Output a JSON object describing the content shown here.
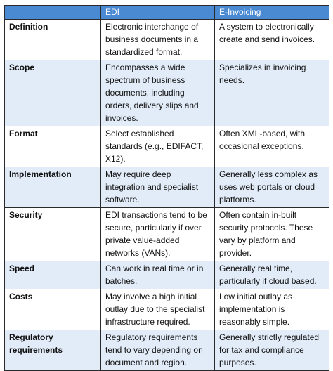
{
  "columns": [
    "",
    "EDI",
    "E-Invoicing"
  ],
  "rows": [
    {
      "label": "Definition",
      "edi": "Electronic interchange of business documents in a standardized format.",
      "einv": "A system to electronically create and send invoices."
    },
    {
      "label": "Scope",
      "edi": "Encompasses a wide spectrum of business documents, including orders, delivery slips and invoices.",
      "einv": "Specializes in invoicing needs."
    },
    {
      "label": "Format",
      "edi": "Select established standards (e.g., EDIFACT, X12).",
      "einv": "Often XML-based, with occasional exceptions."
    },
    {
      "label": "Implementation",
      "edi": "May require deep integration and specialist software.",
      "einv": "Generally less complex as uses web portals or cloud platforms."
    },
    {
      "label": "Security",
      "edi": "EDI transactions tend to be secure, particularly if over private value-added networks (VANs).",
      "einv": "Often contain in-built security protocols. These vary by platform and provider."
    },
    {
      "label": "Speed",
      "edi": "Can work in real time or in batches.",
      "einv": "Generally real time, particularly if cloud based."
    },
    {
      "label": "Costs",
      "edi": "May involve a high initial outlay due to the specialist infrastructure required.",
      "einv": "Low initial outlay as implementation is reasonably simple."
    },
    {
      "label": "Regulatory requirements",
      "edi": "Regulatory requirements tend to vary depending on document and region.",
      "einv": "Generally strictly regulated for tax and compliance purposes."
    }
  ]
}
